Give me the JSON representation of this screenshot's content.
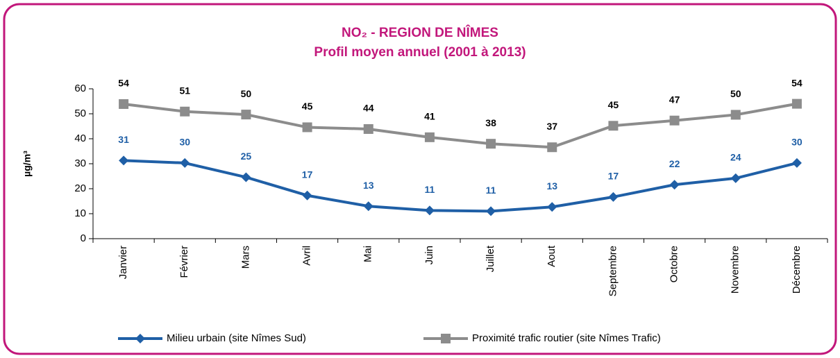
{
  "chart_data": {
    "type": "line",
    "title": "NO₂ - REGION DE NÎMES",
    "subtitle": "Profil moyen annuel (2001 à 2013)",
    "y_label": "µg/m³",
    "categories": [
      "Janvier",
      "Février",
      "Mars",
      "Avril",
      "Mai",
      "Juin",
      "Juillet",
      "Aout",
      "Septembre",
      "Octobre",
      "Novembre",
      "Décembre"
    ],
    "series": [
      {
        "name": "Milieu urbain (site Nîmes Sud)",
        "color": "#1f5fa6",
        "label_color": "#1f5fa6",
        "marker": "diamond",
        "values": [
          31.3,
          30.3,
          24.6,
          17.3,
          13,
          11.3,
          11,
          12.7,
          16.7,
          21.6,
          24.2,
          30.3
        ],
        "value_labels": [
          "31",
          "30",
          "25",
          "17",
          "13",
          "11",
          "11",
          "13",
          "17",
          "22",
          "24",
          "30"
        ]
      },
      {
        "name": "Proximité trafic routier (site Nîmes Trafic)",
        "color": "#8c8c8c",
        "label_color": "#000000",
        "marker": "square",
        "values": [
          53.9,
          50.9,
          49.7,
          44.6,
          43.9,
          40.6,
          38,
          36.6,
          45.2,
          47.3,
          49.6,
          54
        ],
        "value_labels": [
          "54",
          "51",
          "50",
          "45",
          "44",
          "41",
          "38",
          "37",
          "45",
          "47",
          "50",
          "54"
        ]
      }
    ],
    "ylim": [
      0,
      60
    ],
    "yticks": [
      0,
      10,
      20,
      30,
      40,
      50,
      60
    ],
    "grid": false,
    "legend": "bottom"
  }
}
